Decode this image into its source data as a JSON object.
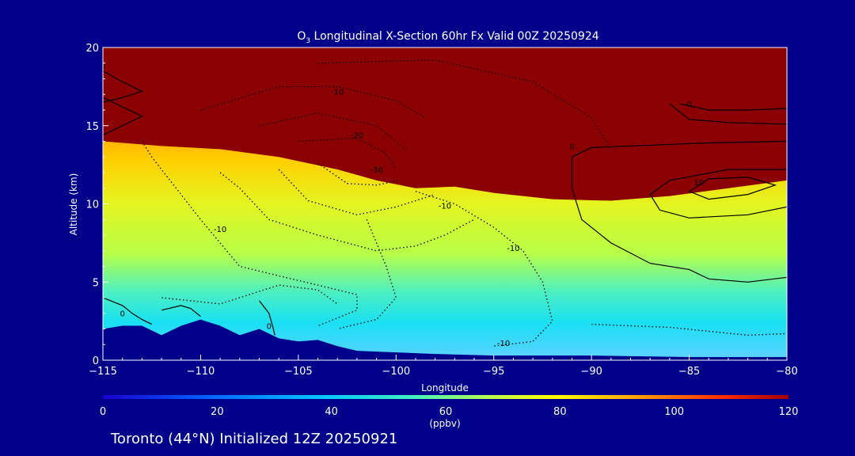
{
  "chart_data": {
    "type": "heatmap",
    "title": "O3 Longitudinal X-Section 60hr  Fx Valid 00Z 20250924",
    "title_main": "O",
    "title_sub": "3",
    "title_rest": " Longitudinal X-Section 60hr  Fx Valid 00Z 20250924",
    "xlabel": "Longitude",
    "ylabel": "Altitude (km)",
    "xlim": [
      -115,
      -80
    ],
    "ylim": [
      0,
      20
    ],
    "x_ticks": [
      -115,
      -110,
      -105,
      -100,
      -95,
      -90,
      -85,
      -80
    ],
    "x_tick_labels": [
      "−115",
      "−110",
      "−105",
      "−100",
      "−95",
      "−90",
      "−85",
      "−80"
    ],
    "y_ticks": [
      0,
      5,
      10,
      15,
      20
    ],
    "y_tick_labels": [
      "0",
      "5",
      "10",
      "15",
      "20"
    ],
    "colorbar": {
      "label": "(ppbv)",
      "range": [
        0,
        120
      ],
      "ticks": [
        0,
        20,
        40,
        60,
        80,
        100,
        120
      ],
      "tick_labels": [
        "0",
        "20",
        "40",
        "60",
        "80",
        "100",
        "120"
      ]
    },
    "ozone_base_km": [
      [
        -115,
        14
      ],
      [
        -112,
        13.7
      ],
      [
        -109,
        13.5
      ],
      [
        -106,
        13
      ],
      [
        -103,
        12.2
      ],
      [
        -101,
        11.5
      ],
      [
        -99,
        11
      ],
      [
        -97,
        11.1
      ],
      [
        -95,
        10.7
      ],
      [
        -92,
        10.3
      ],
      [
        -89,
        10.2
      ],
      [
        -86,
        10.5
      ],
      [
        -83,
        11
      ],
      [
        -80,
        11.5
      ]
    ],
    "terrain_km": [
      [
        -115,
        2.0
      ],
      [
        -114,
        2.2
      ],
      [
        -113,
        2.2
      ],
      [
        -112,
        1.6
      ],
      [
        -111,
        2.2
      ],
      [
        -110,
        2.6
      ],
      [
        -109,
        2.2
      ],
      [
        -108,
        1.6
      ],
      [
        -107,
        2.0
      ],
      [
        -106,
        1.4
      ],
      [
        -105,
        1.2
      ],
      [
        -104,
        1.3
      ],
      [
        -103,
        0.9
      ],
      [
        -102,
        0.6
      ],
      [
        -100,
        0.5
      ],
      [
        -98,
        0.4
      ],
      [
        -95,
        0.3
      ],
      [
        -90,
        0.3
      ],
      [
        -85,
        0.2
      ],
      [
        -80,
        0.2
      ]
    ],
    "contours": [
      {
        "value": "0",
        "label_at": [
          -115,
          18.6
        ]
      },
      {
        "value": "0",
        "label_at": [
          -85,
          16.2
        ]
      },
      {
        "value": "0",
        "label_at": [
          -91,
          13.5
        ]
      },
      {
        "value": "0",
        "label_at": [
          -114,
          2.8
        ]
      },
      {
        "value": "0",
        "label_at": [
          -106.5,
          2.0
        ]
      },
      {
        "value": "10",
        "label_at": [
          -84.5,
          11.2
        ]
      },
      {
        "value": "-10",
        "label_at": [
          -103,
          17.0
        ]
      },
      {
        "value": "-20",
        "label_at": [
          -102,
          14.2
        ]
      },
      {
        "value": "-30",
        "label_at": [
          -101,
          12.0
        ]
      },
      {
        "value": "-10",
        "label_at": [
          -97.5,
          9.7
        ]
      },
      {
        "value": "-10",
        "label_at": [
          -94,
          7.0
        ]
      },
      {
        "value": "-10",
        "label_at": [
          -109,
          8.2
        ]
      },
      {
        "value": "-10",
        "label_at": [
          -94.5,
          0.9
        ]
      }
    ]
  },
  "footer": {
    "text": "Toronto (44°N) Initialized 12Z 20250921"
  }
}
